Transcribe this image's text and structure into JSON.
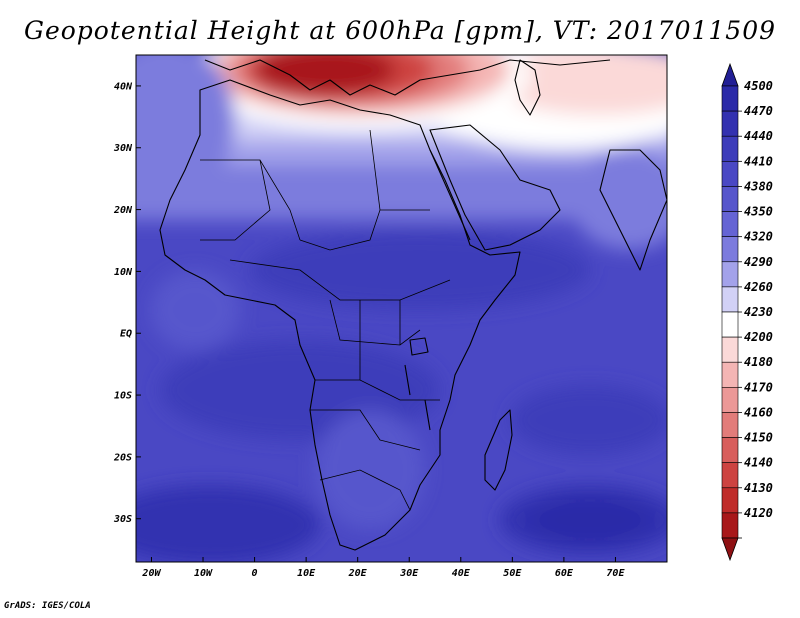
{
  "title": "Geopotential Height at 600hPa [gpm], VT: 2017011509",
  "credit": "GrADS: IGES/COLA",
  "map": {
    "lon_range": [
      -23,
      80
    ],
    "lat_range": [
      -37,
      45
    ],
    "lon_ticks": [
      {
        "value": -20,
        "label": "20W"
      },
      {
        "value": -10,
        "label": "10W"
      },
      {
        "value": 0,
        "label": "0"
      },
      {
        "value": 10,
        "label": "10E"
      },
      {
        "value": 20,
        "label": "20E"
      },
      {
        "value": 30,
        "label": "30E"
      },
      {
        "value": 40,
        "label": "40E"
      },
      {
        "value": 50,
        "label": "50E"
      },
      {
        "value": 60,
        "label": "60E"
      },
      {
        "value": 70,
        "label": "70E"
      }
    ],
    "lat_ticks": [
      {
        "value": 40,
        "label": "40N"
      },
      {
        "value": 30,
        "label": "30N"
      },
      {
        "value": 20,
        "label": "20N"
      },
      {
        "value": 10,
        "label": "10N"
      },
      {
        "value": 0,
        "label": "EQ"
      },
      {
        "value": -10,
        "label": "10S"
      },
      {
        "value": -20,
        "label": "20S"
      },
      {
        "value": -30,
        "label": "30S"
      }
    ]
  },
  "colorbar": {
    "levels": [
      {
        "label": "4500",
        "color": "#2b2aa8"
      },
      {
        "label": "4470",
        "color": "#3331b0"
      },
      {
        "label": "4440",
        "color": "#3d3cba"
      },
      {
        "label": "4410",
        "color": "#4a48c4"
      },
      {
        "label": "4380",
        "color": "#5756cc"
      },
      {
        "label": "4350",
        "color": "#6564d4"
      },
      {
        "label": "4320",
        "color": "#7c7bdd"
      },
      {
        "label": "4290",
        "color": "#a3a2ea"
      },
      {
        "label": "4260",
        "color": "#d2d1f6"
      },
      {
        "label": "4230",
        "color": "#ffffff"
      },
      {
        "label": "4200",
        "color": "#fbd9d8"
      },
      {
        "label": "4180",
        "color": "#f4b5b4"
      },
      {
        "label": "4170",
        "color": "#ec9897"
      },
      {
        "label": "4160",
        "color": "#e27c7a"
      },
      {
        "label": "4150",
        "color": "#d85e5c"
      },
      {
        "label": "4140",
        "color": "#cd4341"
      },
      {
        "label": "4130",
        "color": "#bf2c2a"
      },
      {
        "label": "4120",
        "color": "#a8181a"
      }
    ],
    "top_color": "#221f95",
    "bottom_color": "#8e1013"
  }
}
